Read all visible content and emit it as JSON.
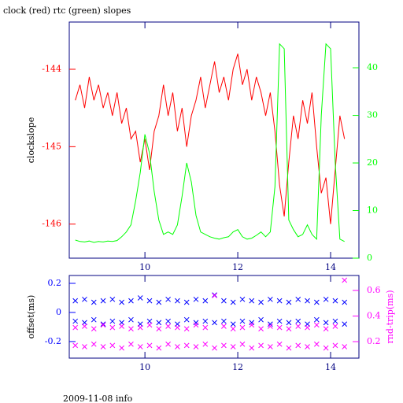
{
  "footer": "2009-11-08 info",
  "chart_data": [
    {
      "type": "line",
      "title": "clock (red) rtc (green) slopes",
      "y_label": "clockslope",
      "x": [
        8.5,
        8.6,
        8.7,
        8.8,
        8.9,
        9.0,
        9.1,
        9.2,
        9.3,
        9.4,
        9.5,
        9.6,
        9.7,
        9.8,
        9.9,
        10.0,
        10.1,
        10.2,
        10.3,
        10.4,
        10.5,
        10.6,
        10.7,
        10.8,
        10.9,
        11.0,
        11.1,
        11.2,
        11.3,
        11.4,
        11.5,
        11.6,
        11.7,
        11.8,
        11.9,
        12.0,
        12.1,
        12.2,
        12.3,
        12.4,
        12.5,
        12.6,
        12.7,
        12.8,
        12.9,
        13.0,
        13.1,
        13.2,
        13.3,
        13.4,
        13.5,
        13.6,
        13.7,
        13.8,
        13.9,
        14.0,
        14.1,
        14.2,
        14.3
      ],
      "series": [
        {
          "name": "clock",
          "color": "#ff0000",
          "values": [
            -144.4,
            -144.2,
            -144.5,
            -144.1,
            -144.4,
            -144.2,
            -144.5,
            -144.3,
            -144.6,
            -144.3,
            -144.7,
            -144.5,
            -144.9,
            -144.8,
            -145.2,
            -144.9,
            -145.3,
            -144.8,
            -144.6,
            -144.2,
            -144.6,
            -144.3,
            -144.8,
            -144.5,
            -145.0,
            -144.6,
            -144.4,
            -144.1,
            -144.5,
            -144.2,
            -143.9,
            -144.3,
            -144.1,
            -144.4,
            -144.0,
            -143.8,
            -144.2,
            -144.0,
            -144.4,
            -144.1,
            -144.3,
            -144.6,
            -144.3,
            -144.8,
            -145.5,
            -145.9,
            -145.2,
            -144.6,
            -144.9,
            -144.4,
            -144.7,
            -144.3,
            -145.0,
            -145.6,
            -145.4,
            -146.0,
            -145.3,
            -144.6,
            -144.9
          ]
        },
        {
          "name": "rtc",
          "color": "#00ff00",
          "axis": "y2",
          "values": [
            3.8,
            3.5,
            3.4,
            3.6,
            3.3,
            3.5,
            3.4,
            3.6,
            3.5,
            3.7,
            4.5,
            5.5,
            7,
            12,
            18,
            26,
            22,
            14,
            8,
            5,
            5.5,
            5,
            7,
            13,
            20,
            16,
            9,
            5.5,
            5,
            4.5,
            4.2,
            4,
            4.3,
            4.5,
            5.5,
            6,
            4.5,
            4,
            4.2,
            4.8,
            5.5,
            4.5,
            5.5,
            15,
            45,
            44,
            8,
            6,
            4.5,
            5,
            7,
            5,
            4,
            30,
            45,
            44,
            20,
            4,
            3.5
          ]
        }
      ],
      "xlim": [
        8.37,
        14.61
      ],
      "xticks": [
        10,
        12,
        14
      ],
      "ylim": [
        -146.44,
        -143.39
      ],
      "yticks": [
        -146,
        -145,
        -144
      ],
      "y2lim": [
        0,
        49.6
      ],
      "y2ticks": [
        0,
        10,
        20,
        30,
        40
      ]
    },
    {
      "type": "scatter",
      "y_label": "offset(ms)",
      "y2_label": "rnd-trip(ms)",
      "x": [
        8.5,
        8.5,
        8.7,
        8.7,
        8.9,
        8.9,
        9.1,
        9.1,
        9.3,
        9.3,
        9.5,
        9.5,
        9.7,
        9.7,
        9.9,
        9.9,
        10.1,
        10.1,
        10.3,
        10.3,
        10.5,
        10.5,
        10.7,
        10.7,
        10.9,
        10.9,
        11.1,
        11.1,
        11.3,
        11.3,
        11.5,
        11.5,
        11.7,
        11.7,
        11.9,
        11.9,
        12.1,
        12.1,
        12.3,
        12.3,
        12.5,
        12.5,
        12.7,
        12.7,
        12.9,
        12.9,
        13.1,
        13.1,
        13.3,
        13.3,
        13.5,
        13.5,
        13.7,
        13.7,
        13.9,
        13.9,
        14.1,
        14.1,
        14.3,
        14.3
      ],
      "series": [
        {
          "name": "offset",
          "color": "#0000ff",
          "values": [
            0.08,
            -0.06,
            0.09,
            -0.07,
            0.07,
            -0.05,
            0.08,
            -0.08,
            0.09,
            -0.06,
            0.07,
            -0.07,
            0.08,
            -0.05,
            0.1,
            -0.08,
            0.08,
            -0.06,
            0.07,
            -0.07,
            0.09,
            -0.06,
            0.08,
            -0.08,
            0.07,
            -0.05,
            0.09,
            -0.07,
            0.08,
            -0.06,
            0.12,
            -0.07,
            0.08,
            -0.06,
            0.07,
            -0.08,
            0.09,
            -0.06,
            0.08,
            -0.07,
            0.07,
            -0.05,
            0.09,
            -0.08,
            0.08,
            -0.06,
            0.07,
            -0.07,
            0.09,
            -0.06,
            0.08,
            -0.08,
            0.07,
            -0.05,
            0.09,
            -0.07,
            0.08,
            -0.06,
            0.07,
            -0.08
          ]
        },
        {
          "name": "rnd-trip",
          "color": "#ff00ff",
          "axis": "y2",
          "values": [
            0.31,
            0.17,
            0.32,
            0.16,
            0.3,
            0.18,
            0.33,
            0.16,
            0.31,
            0.17,
            0.32,
            0.15,
            0.3,
            0.18,
            0.31,
            0.16,
            0.33,
            0.17,
            0.3,
            0.15,
            0.32,
            0.18,
            0.31,
            0.16,
            0.3,
            0.17,
            0.33,
            0.16,
            0.31,
            0.18,
            0.56,
            0.15,
            0.32,
            0.17,
            0.3,
            0.16,
            0.31,
            0.18,
            0.33,
            0.15,
            0.3,
            0.17,
            0.32,
            0.16,
            0.31,
            0.18,
            0.3,
            0.15,
            0.32,
            0.17,
            0.31,
            0.16,
            0.33,
            0.18,
            0.3,
            0.15,
            0.32,
            0.17,
            0.68,
            0.16
          ]
        }
      ],
      "xlim": [
        8.37,
        14.61
      ],
      "xticks": [
        10,
        12,
        14
      ],
      "ylim": [
        -0.314,
        0.254
      ],
      "yticks": [
        -0.2,
        0,
        0.2
      ],
      "y2lim": [
        0.071,
        0.717
      ],
      "y2ticks": [
        0.2,
        0.4,
        0.6
      ]
    }
  ]
}
